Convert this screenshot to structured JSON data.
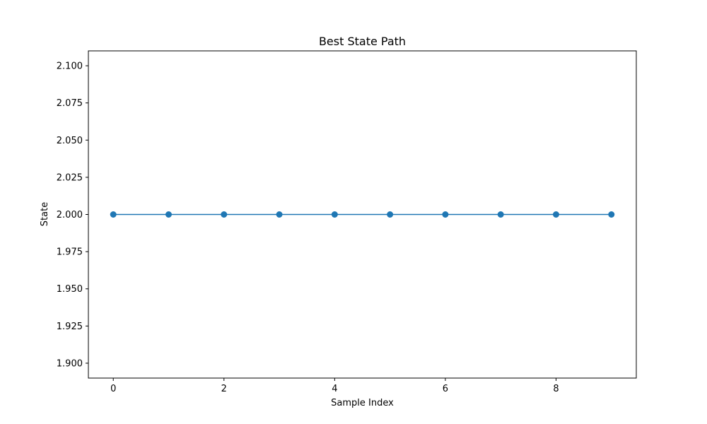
{
  "chart_data": {
    "type": "line",
    "title": "Best State Path",
    "xlabel": "Sample Index",
    "ylabel": "State",
    "x": [
      0,
      1,
      2,
      3,
      4,
      5,
      6,
      7,
      8,
      9
    ],
    "series": [
      {
        "values": [
          2,
          2,
          2,
          2,
          2,
          2,
          2,
          2,
          2,
          2
        ],
        "color": "#1f77b4",
        "marker": "circle"
      }
    ],
    "xlim": [
      -0.45,
      9.45
    ],
    "ylim": [
      1.89,
      2.11
    ],
    "xticks": [
      0,
      2,
      4,
      6,
      8
    ],
    "xtick_labels": [
      "0",
      "2",
      "4",
      "6",
      "8"
    ],
    "yticks": [
      1.9,
      1.925,
      1.95,
      1.975,
      2.0,
      2.025,
      2.05,
      2.075,
      2.1
    ],
    "ytick_labels": [
      "1.900",
      "1.925",
      "1.950",
      "1.975",
      "2.000",
      "2.025",
      "2.050",
      "2.075",
      "2.100"
    ],
    "grid": false,
    "legend": false
  }
}
